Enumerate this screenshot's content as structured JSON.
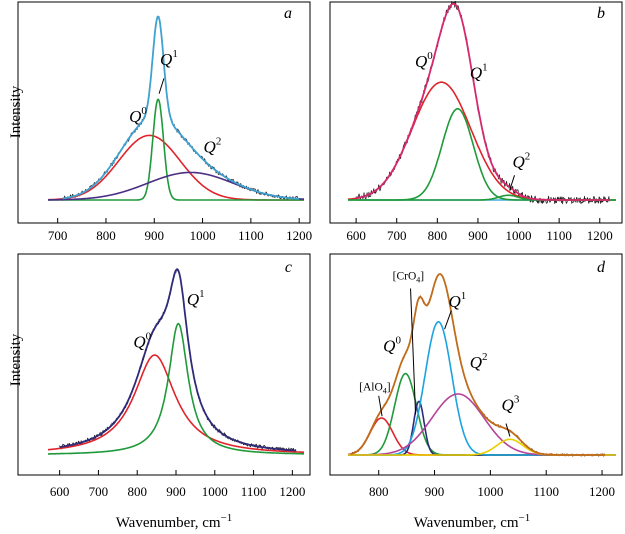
{
  "figure": {
    "ylabel": "Intensity",
    "xlabel": "Wavenumber, cm",
    "xlabel_sup": "−1"
  },
  "chart_data": [
    {
      "panel": "a",
      "type": "line",
      "xlim": [
        680,
        1210
      ],
      "ylim": [
        0,
        1.0
      ],
      "xticks": [
        700,
        800,
        900,
        1000,
        1100,
        1200
      ],
      "show_ylabel": true,
      "show_xlabel": false,
      "series": [
        {
          "name": "measured",
          "color": "#222222",
          "noise": 0.012,
          "range": [
            710,
            1200
          ],
          "sum": true
        },
        {
          "name": "fit",
          "color": "#3fa2d0",
          "width": 1.8,
          "range": [
            710,
            1200
          ],
          "sum": true
        },
        {
          "name": "Q0",
          "color": "#e0242b",
          "center": 890,
          "amp": 0.34,
          "fwhm": 150,
          "shape": "gauss"
        },
        {
          "name": "Q1",
          "color": "#1f9a3a",
          "center": 908,
          "amp": 0.53,
          "fwhm": 26,
          "shape": "gauss"
        },
        {
          "name": "Q2",
          "color": "#4b2e83",
          "center": 975,
          "amp": 0.145,
          "fwhm": 210,
          "shape": "gauss"
        }
      ],
      "labels": [
        {
          "base": "Q",
          "sup": "0",
          "x": 848,
          "y": 0.41
        },
        {
          "base": "Q",
          "sup": "1",
          "x": 912,
          "y": 0.71,
          "leader": [
            920,
            0.64,
            910,
            0.56
          ]
        },
        {
          "base": "Q",
          "sup": "2",
          "x": 1002,
          "y": 0.25
        }
      ]
    },
    {
      "panel": "b",
      "type": "line",
      "xlim": [
        580,
        1240
      ],
      "ylim": [
        0,
        1.0
      ],
      "xticks": [
        600,
        700,
        800,
        900,
        1000,
        1100,
        1200
      ],
      "show_ylabel": false,
      "show_xlabel": false,
      "series": [
        {
          "name": "measured",
          "color": "#222222",
          "noise": 0.02,
          "range": [
            600,
            1225
          ],
          "sum": true
        },
        {
          "name": "fit",
          "color": "#d6286e",
          "width": 1.8,
          "range": [
            600,
            1225
          ],
          "sum": true
        },
        {
          "name": "baseline",
          "color": "#40aee0",
          "constant": 0,
          "range": [
            600,
            1225
          ]
        },
        {
          "name": "Q0",
          "color": "#e0242b",
          "center": 810,
          "amp": 0.62,
          "fwhm": 170,
          "shape": "gauss"
        },
        {
          "name": "Q1",
          "color": "#1f9a3a",
          "center": 850,
          "amp": 0.48,
          "fwhm": 90,
          "shape": "gauss"
        },
        {
          "name": "Q2",
          "color": "#1f9a3a",
          "center": 975,
          "amp": 0.025,
          "fwhm": 55,
          "shape": "gauss"
        }
      ],
      "labels": [
        {
          "base": "Q",
          "sup": "0",
          "x": 745,
          "y": 0.7
        },
        {
          "base": "Q",
          "sup": "1",
          "x": 880,
          "y": 0.64
        },
        {
          "base": "Q",
          "sup": "2",
          "x": 985,
          "y": 0.17,
          "leader": [
            990,
            0.13,
            978,
            0.05
          ]
        }
      ]
    },
    {
      "panel": "c",
      "type": "line",
      "xlim": [
        570,
        1230
      ],
      "ylim": [
        0,
        1.0
      ],
      "xticks": [
        600,
        700,
        800,
        900,
        1000,
        1100,
        1200
      ],
      "show_ylabel": true,
      "show_xlabel": true,
      "series": [
        {
          "name": "measured",
          "color": "#222222",
          "noise": 0.012,
          "range": [
            600,
            1210
          ],
          "sum": true
        },
        {
          "name": "fit",
          "color": "#2f2a7a",
          "width": 1.8,
          "range": [
            600,
            1210
          ],
          "sum": true
        },
        {
          "name": "Q0",
          "color": "#e0242b",
          "center": 845,
          "amp": 0.54,
          "fwhm": 130,
          "shape": "lorentz"
        },
        {
          "name": "Q1",
          "color": "#1f9a3a",
          "center": 906,
          "amp": 0.71,
          "fwhm": 62,
          "shape": "lorentz"
        }
      ],
      "labels": [
        {
          "base": "Q",
          "sup": "0",
          "x": 790,
          "y": 0.58
        },
        {
          "base": "Q",
          "sup": "1",
          "x": 928,
          "y": 0.81
        }
      ]
    },
    {
      "panel": "d",
      "type": "line",
      "xlim": [
        745,
        1225
      ],
      "ylim": [
        0,
        1.0
      ],
      "xticks": [
        800,
        900,
        1000,
        1100,
        1200
      ],
      "show_ylabel": false,
      "show_xlabel": true,
      "series": [
        {
          "name": "measured",
          "color": "#9a4a10",
          "noise": 0.008,
          "range": [
            750,
            1205
          ],
          "sum": true
        },
        {
          "name": "fit",
          "color": "#c06c1a",
          "width": 1.8,
          "range": [
            750,
            1205
          ],
          "sum": true
        },
        {
          "name": "baseline",
          "color": "#e8d000",
          "constant": 0,
          "range": [
            750,
            1205
          ]
        },
        {
          "name": "[AlO4]",
          "color": "#e0242b",
          "center": 805,
          "amp": 0.2,
          "fwhm": 48,
          "shape": "gauss"
        },
        {
          "name": "Q0",
          "color": "#1f9a3a",
          "center": 848,
          "amp": 0.44,
          "fwhm": 46,
          "shape": "gauss"
        },
        {
          "name": "[CrO4]",
          "color": "#2f2a7a",
          "center": 872,
          "amp": 0.29,
          "fwhm": 22,
          "shape": "gauss"
        },
        {
          "name": "Q1",
          "color": "#1ba3e0",
          "center": 907,
          "amp": 0.72,
          "fwhm": 56,
          "shape": "gauss"
        },
        {
          "name": "Q2",
          "color": "#b3449a",
          "center": 942,
          "amp": 0.33,
          "fwhm": 110,
          "shape": "gauss"
        },
        {
          "name": "Q3",
          "color": "#e8d000",
          "center": 1035,
          "amp": 0.085,
          "fwhm": 55,
          "shape": "gauss"
        }
      ],
      "labels": [
        {
          "base": "[AlO",
          "sub": "4",
          "close": "]",
          "x": 765,
          "y": 0.35,
          "leader": [
            800,
            0.32,
            806,
            0.21
          ]
        },
        {
          "base": "Q",
          "sup": "0",
          "x": 808,
          "y": 0.56
        },
        {
          "base": "[CrO",
          "sub": "4",
          "close": "]",
          "x": 825,
          "y": 0.95,
          "leader": [
            857,
            0.9,
            866,
            0.22
          ]
        },
        {
          "base": "Q",
          "sup": "1",
          "x": 925,
          "y": 0.8,
          "leader": [
            930,
            0.78,
            918,
            0.68
          ]
        },
        {
          "base": "Q",
          "sup": "2",
          "x": 963,
          "y": 0.47
        },
        {
          "base": "Q",
          "sup": "3",
          "x": 1020,
          "y": 0.24,
          "leader": [
            1028,
            0.17,
            1035,
            0.1
          ]
        }
      ]
    }
  ]
}
